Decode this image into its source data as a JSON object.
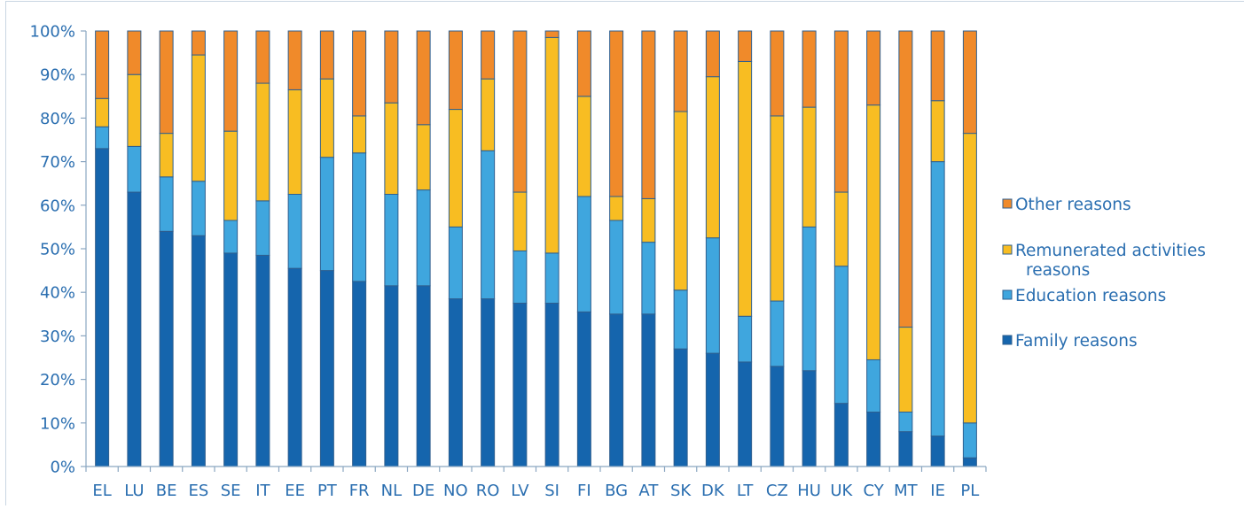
{
  "chart_data": {
    "type": "bar",
    "stacked": true,
    "percent_stacked": true,
    "title": "",
    "xlabel": "",
    "ylabel": "",
    "ylim": [
      0,
      100
    ],
    "y_ticks": [
      "0%",
      "10%",
      "20%",
      "30%",
      "40%",
      "50%",
      "60%",
      "70%",
      "80%",
      "90%",
      "100%"
    ],
    "grid": false,
    "legend_position": "right",
    "categories": [
      "EL",
      "LU",
      "BE",
      "ES",
      "SE",
      "IT",
      "EE",
      "PT",
      "FR",
      "NL",
      "DE",
      "NO",
      "RO",
      "LV",
      "SI",
      "FI",
      "BG",
      "AT",
      "SK",
      "DK",
      "LT",
      "CZ",
      "HU",
      "UK",
      "CY",
      "MT",
      "IE",
      "PL"
    ],
    "series": [
      {
        "name": "Family reasons",
        "color": "#1565ad",
        "values": [
          73,
          63,
          54,
          53,
          49,
          48.5,
          45.5,
          45,
          42.5,
          41.5,
          41.5,
          38.5,
          38.5,
          37.5,
          37.5,
          35.5,
          35,
          35,
          27,
          26,
          24,
          23,
          22,
          14.5,
          12.5,
          8,
          7,
          2
        ]
      },
      {
        "name": "Education reasons",
        "color": "#3fa6de",
        "values": [
          5,
          10.5,
          12.5,
          12.5,
          7.5,
          12.5,
          17,
          26,
          29.5,
          21,
          22,
          16.5,
          34,
          12,
          11.5,
          26.5,
          21.5,
          16.5,
          13.5,
          26.5,
          10.5,
          15,
          33,
          31.5,
          12,
          4.5,
          63,
          8
        ]
      },
      {
        "name": "Remunerated activities reasons",
        "color": "#f8bd22",
        "values": [
          6.5,
          16.5,
          10,
          29,
          20.5,
          27,
          24,
          18,
          8.5,
          21,
          15,
          27,
          16.5,
          13.5,
          49.5,
          23,
          5.5,
          10,
          41,
          37,
          58.5,
          42.5,
          27.5,
          17,
          58.5,
          19.5,
          14,
          66.5
        ]
      },
      {
        "name": "Other reasons",
        "color": "#f08a2a",
        "values": [
          15.5,
          10,
          23.5,
          5.5,
          23,
          12,
          13.5,
          11,
          19.5,
          16.5,
          21.5,
          18,
          11,
          37,
          1.5,
          15,
          38,
          38.5,
          18.5,
          10.5,
          7,
          19.5,
          17.5,
          37,
          17,
          68,
          16,
          23.5
        ]
      }
    ],
    "legend_order": [
      "Other reasons",
      "Remunerated activities reasons",
      "Education reasons",
      "Family reasons"
    ],
    "legend_lines": {
      "Other reasons": [
        "Other reasons"
      ],
      "Remunerated activities reasons": [
        "Remunerated activities",
        "reasons"
      ],
      "Education reasons": [
        "Education reasons"
      ],
      "Family reasons": [
        "Family reasons"
      ]
    },
    "axis_color": "#8aa6c1",
    "text_color": "#2a6eb0",
    "bar_outline_color": "#2f5f8f"
  }
}
